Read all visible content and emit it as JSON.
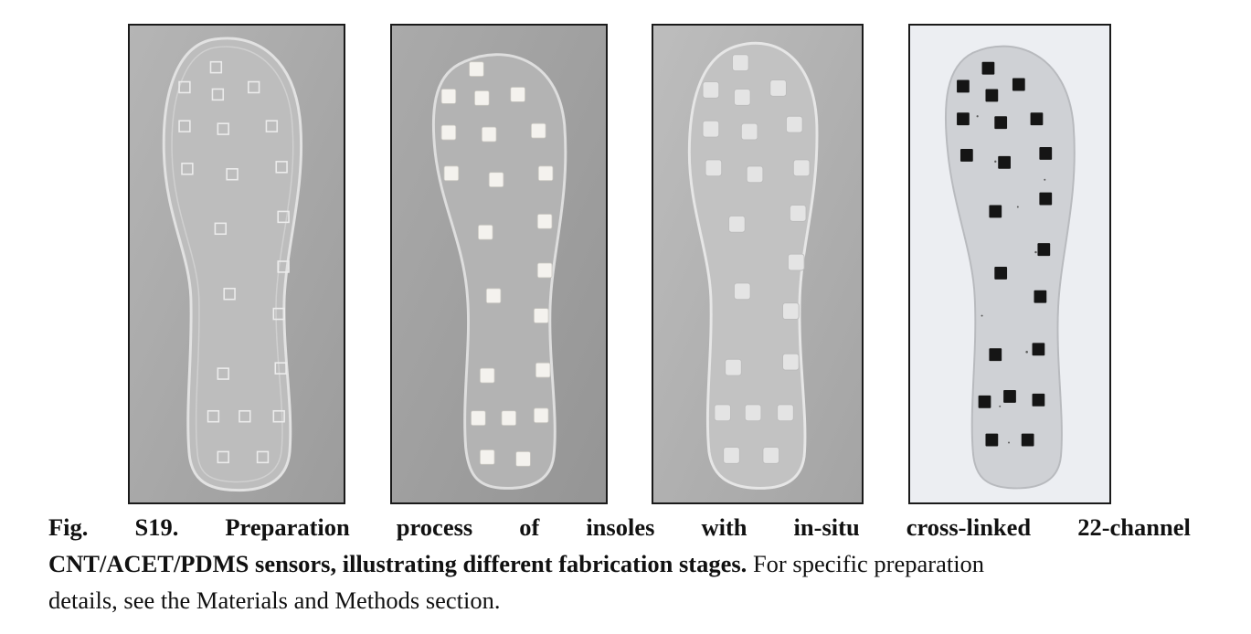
{
  "figure": {
    "panels": [
      {
        "stage": "molded insole with square sensor slots",
        "sensor_color": "empty"
      },
      {
        "stage": "white sensor blocks inserted in slots",
        "sensor_color": "#f2f0ec"
      },
      {
        "stage": "transparent cubes cross-linked in-situ",
        "sensor_color": "#e9e9e9"
      },
      {
        "stage": "black CNT/ACET/PDMS sensors on insole",
        "sensor_color": "#151515"
      }
    ],
    "colors": {
      "gray_background": "#a7a7a7",
      "light_background": "#eceef2",
      "photo_border": "#1a1a1a"
    }
  },
  "caption": {
    "line1_words": [
      "Fig.",
      "S19.",
      "Preparation",
      "process",
      "of",
      "insoles",
      "with",
      "in-situ",
      "cross-linked",
      "22-channel"
    ],
    "line2_bold": "CNT/ACET/PDMS sensors, illustrating different fabrication stages.",
    "line2_regular": " For specific preparation",
    "line3": "details, see the Materials and Methods section."
  }
}
